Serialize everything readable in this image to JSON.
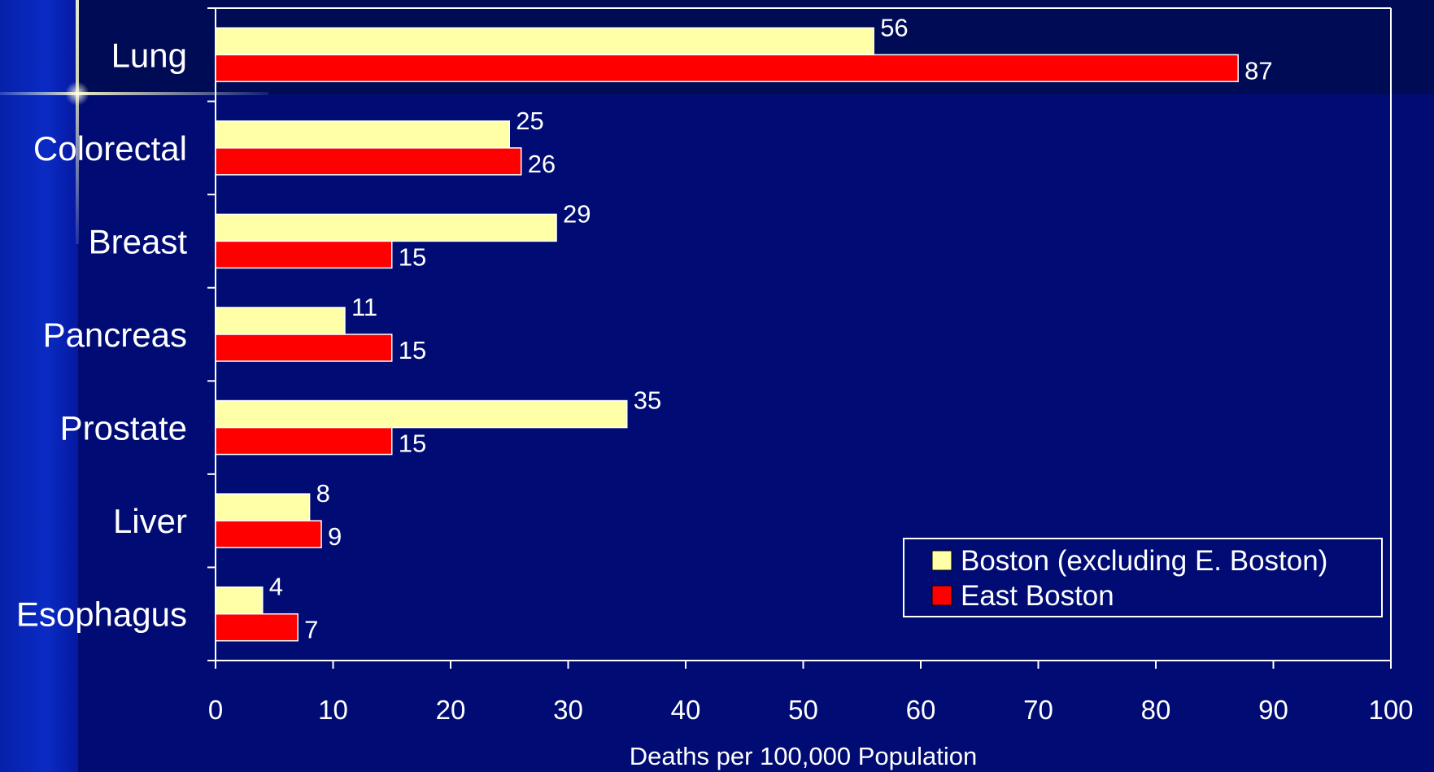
{
  "chart_data": {
    "type": "bar",
    "orientation": "horizontal",
    "categories": [
      "Lung",
      "Colorectal",
      "Breast",
      "Pancreas",
      "Prostate",
      "Liver",
      "Esophagus"
    ],
    "series": [
      {
        "name": "Boston (excluding E. Boston)",
        "color": "#ffffa8",
        "values": [
          56,
          25,
          29,
          11,
          35,
          8,
          4
        ]
      },
      {
        "name": "East Boston",
        "color": "#ff0000",
        "values": [
          87,
          26,
          15,
          15,
          15,
          9,
          7
        ]
      }
    ],
    "xlabel": "Deaths per 100,000 Population",
    "ylabel": "",
    "xlim": [
      0,
      100
    ],
    "xticks": [
      0,
      10,
      20,
      30,
      40,
      50,
      60,
      70,
      80,
      90,
      100
    ],
    "grid": false,
    "legend_position": "bottom-right"
  }
}
